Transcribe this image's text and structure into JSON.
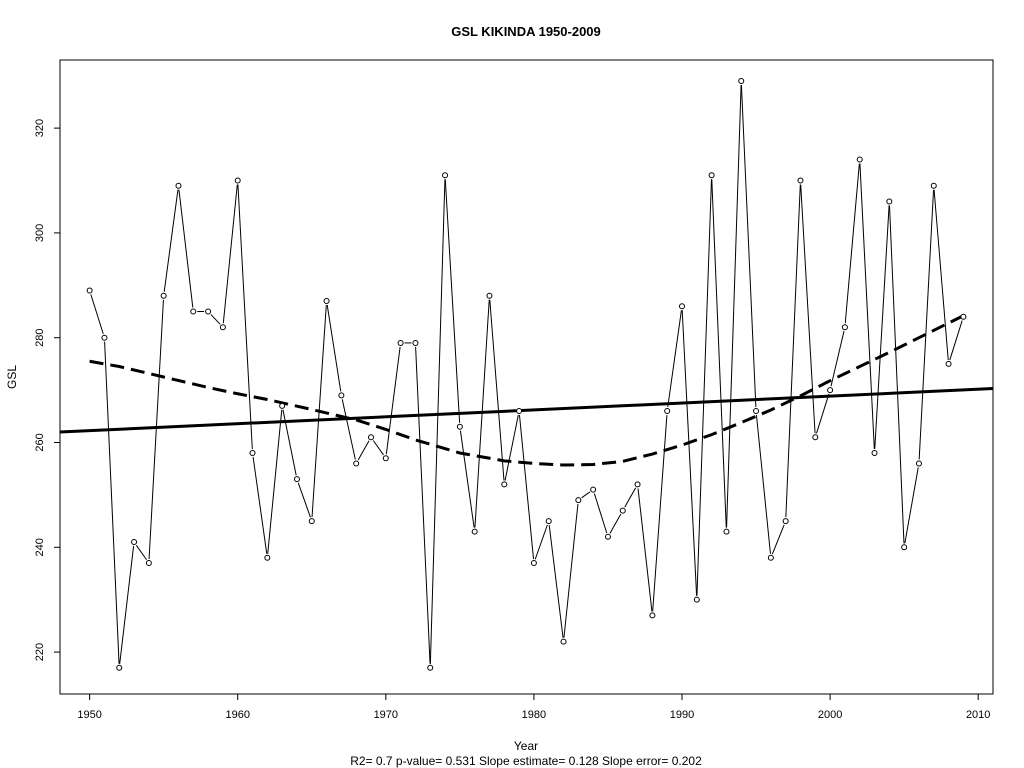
{
  "chart_data": {
    "type": "line",
    "title": "GSL   KIKINDA 1950-2009",
    "xlabel": "Year",
    "ylabel": "GSL",
    "footer": "R2= 0.7  p-value= 0.531  Slope estimate= 0.128  Slope error= 0.202",
    "xlim": [
      1948,
      2011
    ],
    "ylim": [
      212,
      333
    ],
    "x_ticks": [
      1950,
      1960,
      1970,
      1980,
      1990,
      2000,
      2010
    ],
    "y_ticks": [
      220,
      240,
      260,
      280,
      300,
      320
    ],
    "grid": false,
    "series": [
      {
        "style": "line-with-points",
        "x": [
          1950,
          1951,
          1952,
          1953,
          1954,
          1955,
          1956,
          1957,
          1958,
          1959,
          1960,
          1961,
          1962,
          1963,
          1964,
          1965,
          1966,
          1967,
          1968,
          1969,
          1970,
          1971,
          1972,
          1973,
          1974,
          1975,
          1976,
          1977,
          1978,
          1979,
          1980,
          1981,
          1982,
          1983,
          1984,
          1985,
          1986,
          1987,
          1988,
          1989,
          1990,
          1991,
          1992,
          1993,
          1994,
          1995,
          1996,
          1997,
          1998,
          1999,
          2000,
          2001,
          2002,
          2003,
          2004,
          2005,
          2006,
          2007,
          2008,
          2009
        ],
        "values": [
          289,
          280,
          217,
          241,
          237,
          288,
          309,
          285,
          285,
          282,
          310,
          258,
          238,
          267,
          253,
          245,
          287,
          269,
          256,
          261,
          257,
          279,
          279,
          217,
          311,
          263,
          243,
          288,
          252,
          266,
          237,
          245,
          222,
          249,
          251,
          242,
          247,
          252,
          227,
          266,
          286,
          230,
          311,
          243,
          329,
          266,
          238,
          245,
          310,
          261,
          270,
          282,
          314,
          258,
          306,
          240,
          256,
          309,
          275,
          284
        ]
      },
      {
        "style": "solid-thick",
        "x": [
          1948,
          2011
        ],
        "values": [
          262.0,
          270.3
        ]
      },
      {
        "style": "dashed-thick",
        "x": [
          1950,
          1952,
          1955,
          1958,
          1960,
          1962,
          1965,
          1968,
          1970,
          1972,
          1975,
          1978,
          1980,
          1982,
          1984,
          1986,
          1988,
          1990,
          1992,
          1994,
          1996,
          1998,
          2000,
          2002,
          2004,
          2006,
          2008,
          2009
        ],
        "values": [
          275.5,
          274.5,
          272.5,
          270.5,
          269.3,
          268.2,
          266.3,
          264.3,
          262.5,
          260.5,
          258.0,
          256.5,
          256.0,
          255.7,
          255.8,
          256.4,
          257.8,
          259.5,
          261.5,
          263.8,
          266.2,
          268.9,
          271.8,
          274.5,
          277.2,
          280.0,
          282.8,
          284.2
        ]
      }
    ]
  }
}
